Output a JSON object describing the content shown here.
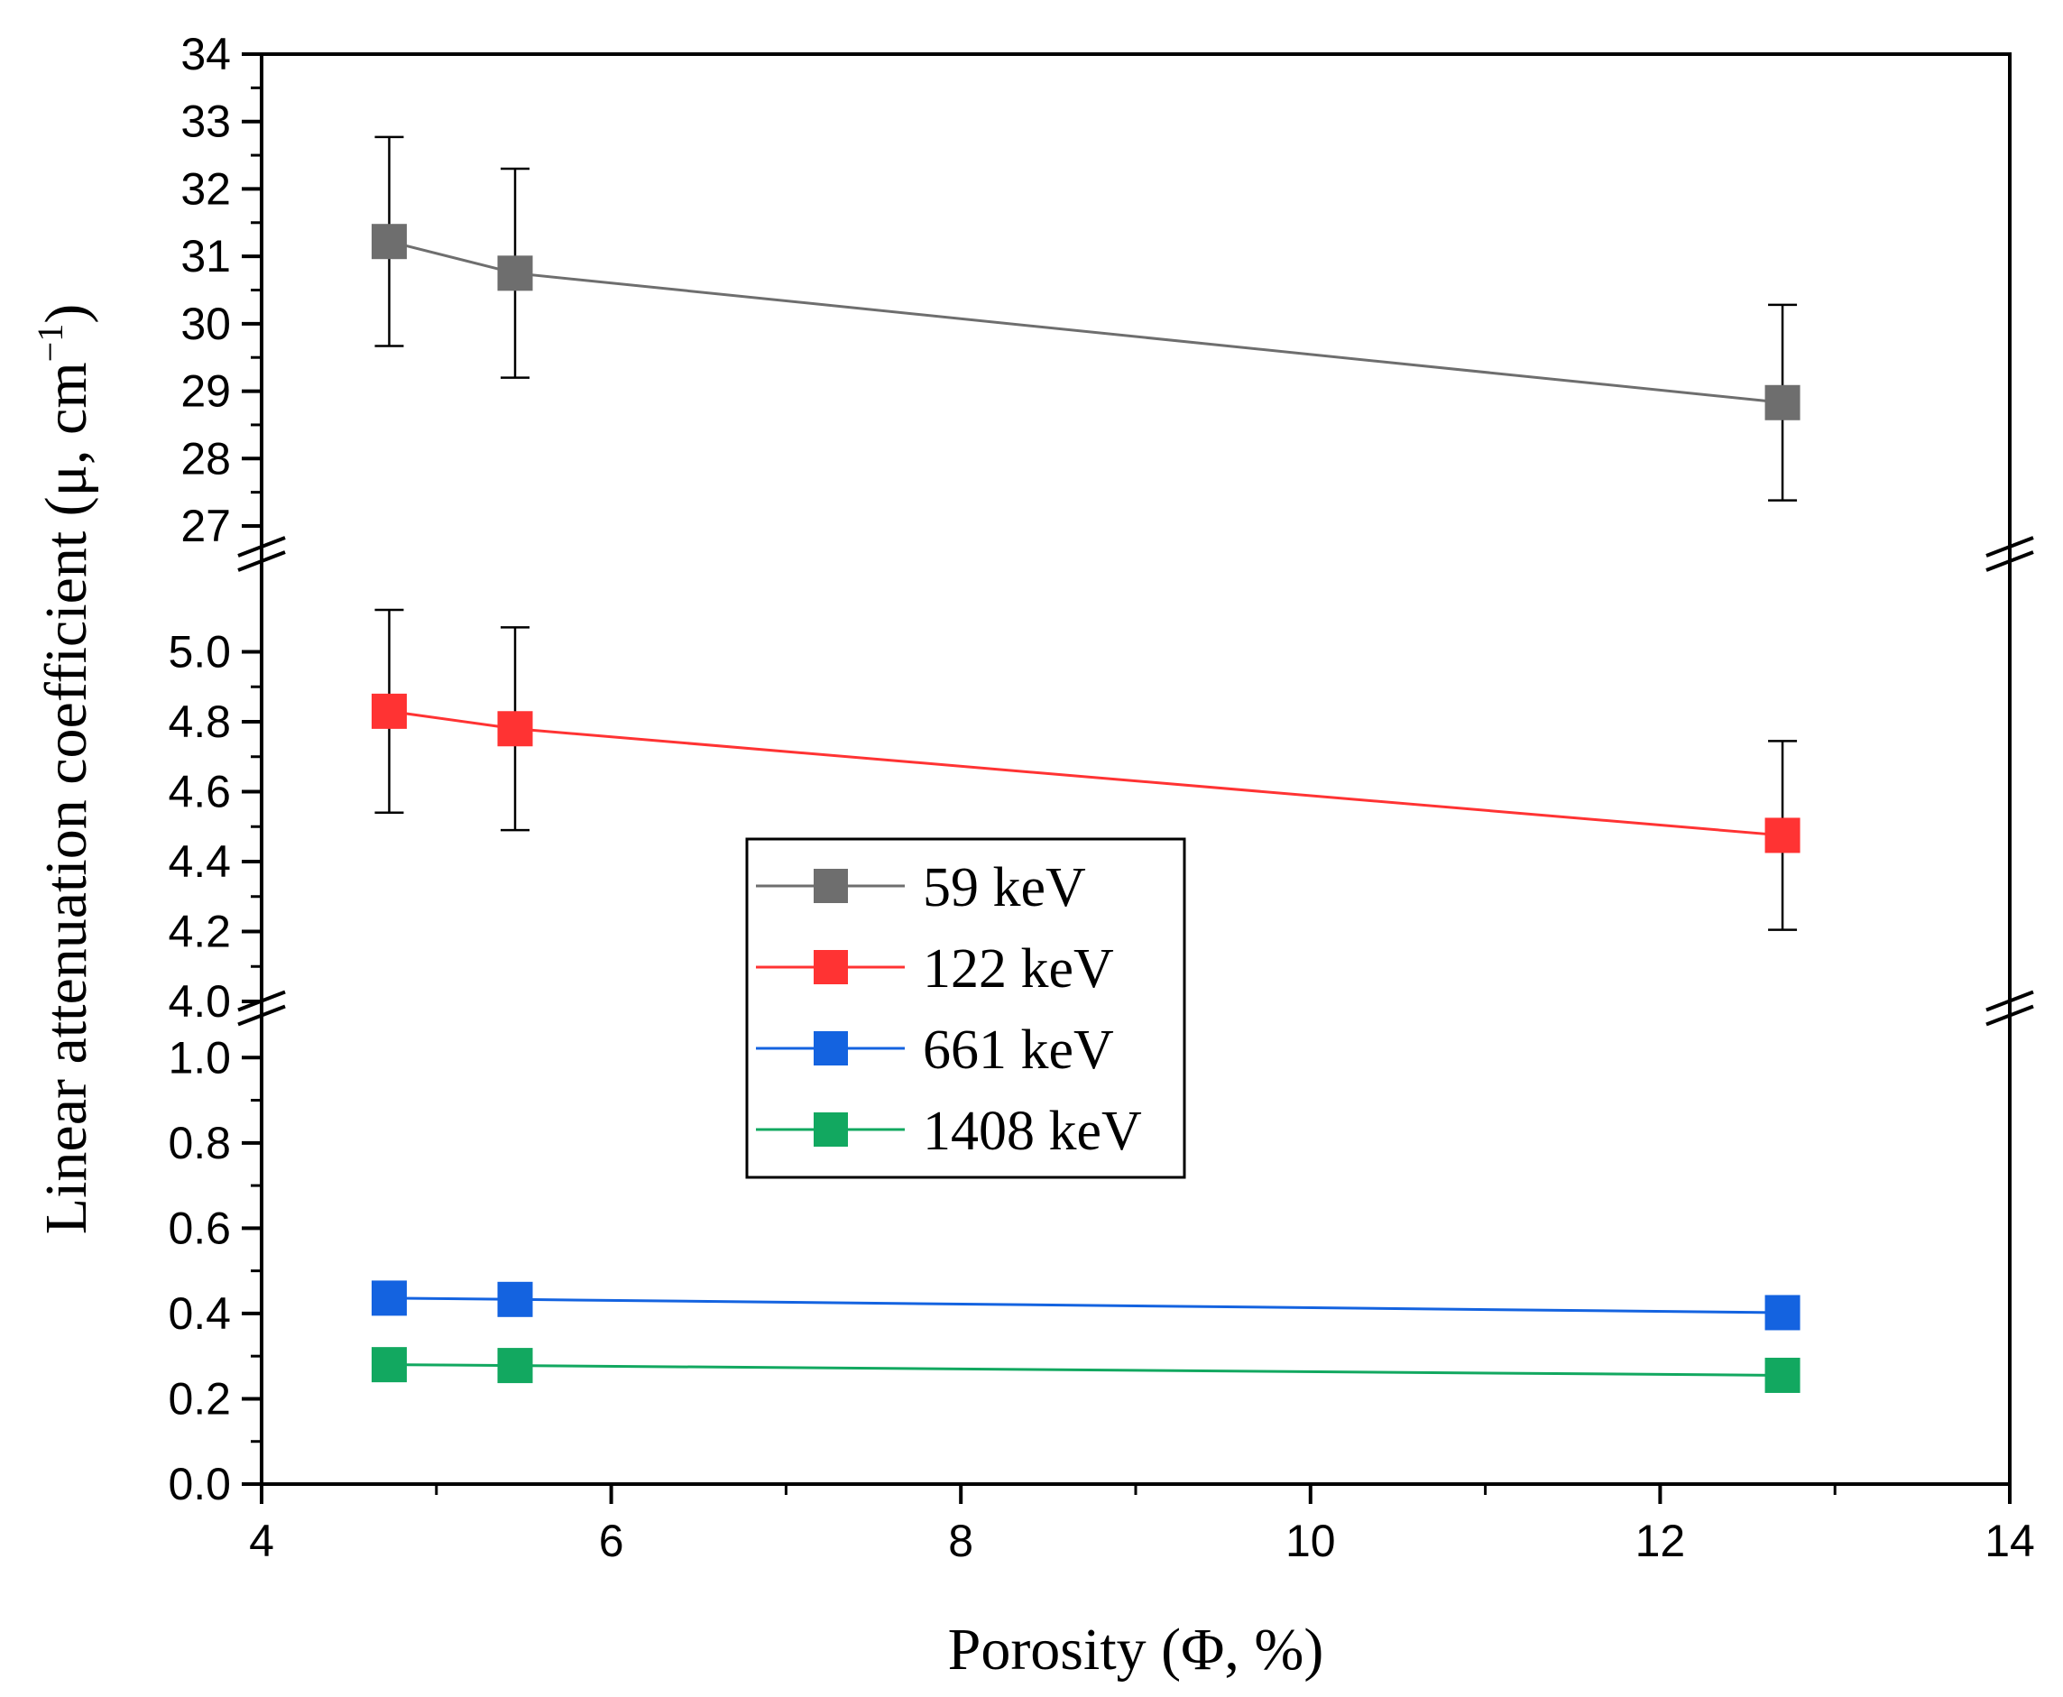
{
  "chart_data": {
    "type": "line",
    "xlabel": "Porosity (Φ, %)",
    "ylabel": "Linear attenuation coefficient (μ, cm",
    "ylabel_superscript": "−1",
    "ylabel_close": ")",
    "xlim": [
      4,
      14
    ],
    "x_ticks": [
      4,
      6,
      8,
      10,
      12,
      14
    ],
    "x": [
      4.73,
      5.45,
      12.7
    ],
    "y_segments": [
      {
        "range": [
          0.0,
          1.1
        ],
        "ticks": [
          "0.0",
          "0.2",
          "0.4",
          "0.6",
          "0.8",
          "1.0"
        ]
      },
      {
        "range": [
          4.0,
          5.2
        ],
        "ticks": [
          "4.0",
          "4.2",
          "4.4",
          "4.6",
          "4.8",
          "5.0"
        ]
      },
      {
        "range": [
          27,
          34
        ],
        "ticks": [
          "27",
          "28",
          "29",
          "30",
          "31",
          "32",
          "33",
          "34"
        ]
      }
    ],
    "series": [
      {
        "name": "59 keV",
        "color": "#6e6e6e",
        "segment": 2,
        "values": [
          31.22,
          30.75,
          28.83
        ],
        "errors": [
          1.55,
          1.55,
          1.45
        ]
      },
      {
        "name": "122 keV",
        "color": "#ff3333",
        "segment": 1,
        "values": [
          4.83,
          4.78,
          4.475
        ],
        "errors": [
          0.29,
          0.29,
          0.27
        ]
      },
      {
        "name": "661 keV",
        "color": "#1463e0",
        "segment": 0,
        "values": [
          0.436,
          0.433,
          0.402
        ],
        "errors": [
          0.03,
          0.03,
          0.03
        ]
      },
      {
        "name": "1408 keV",
        "color": "#12a860",
        "segment": 0,
        "values": [
          0.28,
          0.278,
          0.255
        ],
        "errors": [
          0.03,
          0.03,
          0.03
        ]
      }
    ],
    "legend_position": "center"
  }
}
